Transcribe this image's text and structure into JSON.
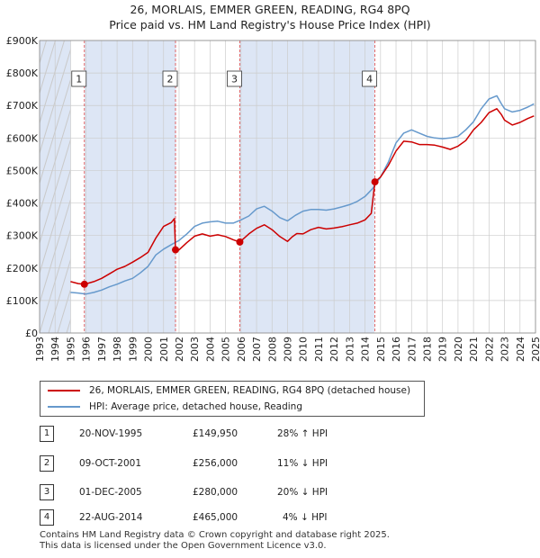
{
  "title_line1": "26, MORLAIS, EMMER GREEN, READING, RG4 8PQ",
  "title_line2": "Price paid vs. HM Land Registry's House Price Index (HPI)",
  "colors": {
    "property": "#cc0000",
    "hpi": "#6699cc",
    "shade": "#dde6f5",
    "grid": "#cccccc",
    "marker_line": "#dd4444"
  },
  "chart_data": {
    "type": "line",
    "xlim": [
      1993,
      2025
    ],
    "ylim": [
      0,
      900000
    ],
    "x_ticks": [
      "1993",
      "1994",
      "1995",
      "1996",
      "1997",
      "1998",
      "1999",
      "2000",
      "2001",
      "2002",
      "2003",
      "2004",
      "2005",
      "2006",
      "2007",
      "2008",
      "2009",
      "2010",
      "2011",
      "2012",
      "2013",
      "2014",
      "2015",
      "2016",
      "2017",
      "2018",
      "2019",
      "2020",
      "2021",
      "2022",
      "2023",
      "2024",
      "2025"
    ],
    "y_ticks": [
      {
        "value": 0,
        "label": "£0"
      },
      {
        "value": 100000,
        "label": "£100K"
      },
      {
        "value": 200000,
        "label": "£200K"
      },
      {
        "value": 300000,
        "label": "£300K"
      },
      {
        "value": 400000,
        "label": "£400K"
      },
      {
        "value": 500000,
        "label": "£500K"
      },
      {
        "value": 600000,
        "label": "£600K"
      },
      {
        "value": 700000,
        "label": "£700K"
      },
      {
        "value": 800000,
        "label": "£800K"
      },
      {
        "value": 900000,
        "label": "£900K"
      }
    ],
    "shaded_regions": [
      [
        1993,
        1995
      ],
      [
        1995.9,
        2001.8
      ],
      [
        2005.9,
        2014.6
      ]
    ],
    "series": [
      {
        "name": "26, MORLAIS, EMMER GREEN, READING, RG4 8PQ (detached house)",
        "color": "#cc0000",
        "x": [
          1995.0,
          1995.5,
          1995.9,
          1996.5,
          1997.0,
          1997.5,
          1998.0,
          1998.5,
          1999.0,
          1999.5,
          2000.0,
          2000.5,
          2001.0,
          2001.5,
          2001.7,
          2001.77,
          2002.0,
          2002.5,
          2003.0,
          2003.5,
          2004.0,
          2004.5,
          2005.0,
          2005.5,
          2005.92,
          2006.3,
          2006.5,
          2007.0,
          2007.5,
          2008.0,
          2008.5,
          2009.0,
          2009.3,
          2009.6,
          2010.0,
          2010.5,
          2011.0,
          2011.5,
          2012.0,
          2012.5,
          2013.0,
          2013.5,
          2014.0,
          2014.4,
          2014.64,
          2015.0,
          2015.5,
          2016.0,
          2016.5,
          2017.0,
          2017.5,
          2018.0,
          2018.5,
          2019.0,
          2019.5,
          2020.0,
          2020.5,
          2021.0,
          2021.5,
          2022.0,
          2022.5,
          2022.8,
          2023.0,
          2023.5,
          2024.0,
          2024.5,
          2024.9
        ],
        "values": [
          158000,
          152000,
          149950,
          158000,
          168000,
          182000,
          196000,
          205000,
          218000,
          232000,
          248000,
          292000,
          328000,
          340000,
          352000,
          256000,
          256000,
          278000,
          298000,
          305000,
          298000,
          302000,
          297000,
          287000,
          280000,
          296000,
          305000,
          322000,
          333000,
          318000,
          297000,
          282000,
          296000,
          306000,
          305000,
          318000,
          325000,
          320000,
          323000,
          327000,
          333000,
          338000,
          348000,
          368000,
          465000,
          480000,
          515000,
          560000,
          590000,
          588000,
          580000,
          580000,
          578000,
          572000,
          565000,
          575000,
          592000,
          625000,
          648000,
          678000,
          690000,
          672000,
          655000,
          640000,
          648000,
          660000,
          668000
        ]
      },
      {
        "name": "HPI: Average price, detached house, Reading",
        "color": "#6699cc",
        "x": [
          1995.0,
          1995.5,
          1996.0,
          1996.5,
          1997.0,
          1997.5,
          1998.0,
          1998.5,
          1999.0,
          1999.5,
          2000.0,
          2000.5,
          2001.0,
          2001.5,
          2002.0,
          2002.5,
          2003.0,
          2003.5,
          2004.0,
          2004.5,
          2005.0,
          2005.5,
          2006.0,
          2006.5,
          2007.0,
          2007.5,
          2008.0,
          2008.5,
          2009.0,
          2009.5,
          2010.0,
          2010.5,
          2011.0,
          2011.5,
          2012.0,
          2012.5,
          2013.0,
          2013.5,
          2014.0,
          2014.5,
          2015.0,
          2015.5,
          2016.0,
          2016.5,
          2017.0,
          2017.5,
          2018.0,
          2018.5,
          2019.0,
          2019.5,
          2020.0,
          2020.5,
          2021.0,
          2021.5,
          2022.0,
          2022.5,
          2022.8,
          2023.0,
          2023.5,
          2024.0,
          2024.5,
          2024.9
        ],
        "values": [
          125000,
          123000,
          120000,
          125000,
          132000,
          142000,
          150000,
          160000,
          168000,
          185000,
          205000,
          240000,
          258000,
          272000,
          285000,
          305000,
          328000,
          338000,
          342000,
          344000,
          338000,
          338000,
          348000,
          360000,
          382000,
          390000,
          375000,
          355000,
          345000,
          362000,
          375000,
          380000,
          380000,
          378000,
          382000,
          388000,
          395000,
          405000,
          420000,
          445000,
          480000,
          525000,
          585000,
          615000,
          625000,
          615000,
          605000,
          600000,
          598000,
          600000,
          605000,
          625000,
          650000,
          690000,
          720000,
          730000,
          705000,
          690000,
          680000,
          685000,
          695000,
          705000
        ]
      }
    ],
    "sales": [
      {
        "label": "1",
        "x": 1995.89,
        "value": 149950
      },
      {
        "label": "2",
        "x": 2001.77,
        "value": 256000
      },
      {
        "label": "3",
        "x": 2005.92,
        "value": 280000
      },
      {
        "label": "4",
        "x": 2014.64,
        "value": 465000
      }
    ]
  },
  "legend": {
    "property_label": "26, MORLAIS, EMMER GREEN, READING, RG4 8PQ (detached house)",
    "hpi_label": "HPI: Average price, detached house, Reading"
  },
  "transactions": [
    {
      "num": "1",
      "date": "20-NOV-1995",
      "price": "£149,950",
      "hpi": "28% ↑ HPI"
    },
    {
      "num": "2",
      "date": "09-OCT-2001",
      "price": "£256,000",
      "hpi": "11% ↓ HPI"
    },
    {
      "num": "3",
      "date": "01-DEC-2005",
      "price": "£280,000",
      "hpi": "20% ↓ HPI"
    },
    {
      "num": "4",
      "date": "22-AUG-2014",
      "price": "£465,000",
      "hpi": "4% ↓ HPI"
    }
  ],
  "footer_line1": "Contains HM Land Registry data © Crown copyright and database right 2025.",
  "footer_line2": "This data is licensed under the Open Government Licence v3.0."
}
